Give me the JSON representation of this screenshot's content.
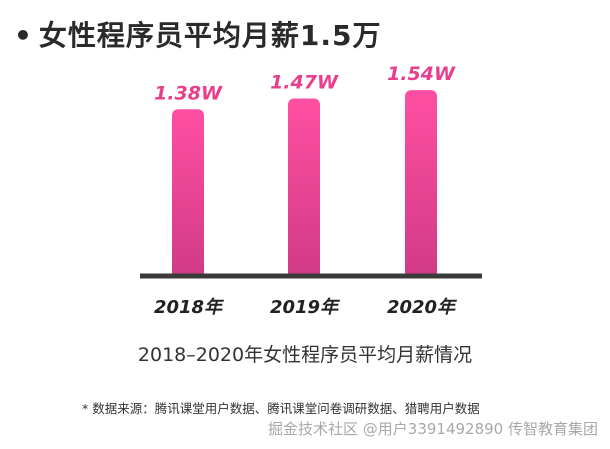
{
  "title_bullet": "•",
  "chart_data": {
    "type": "bar",
    "title": "女性程序员平均月薪1.5万",
    "categories": [
      "2018年",
      "2019年",
      "2020年"
    ],
    "values": [
      1.38,
      1.47,
      1.54
    ],
    "data_labels": [
      "1.38W",
      "1.47W",
      "1.54W"
    ],
    "xlabel": "2018–2020年女性程序员平均月薪情况",
    "ylabel": "",
    "ylim": [
      0,
      1.6
    ],
    "grid": false,
    "bar_color_top": "#ff4fa3",
    "bar_color_bottom": "#d13a86",
    "label_color": "#e83e8c",
    "axis_color": "#3a3a3a"
  },
  "source_note": "* 数据来源：腾讯课堂用户数据、腾讯课堂问卷调研数据、猎聘用户数据",
  "watermark": "掘金技术社区 @用户3391492890 传智教育集团"
}
